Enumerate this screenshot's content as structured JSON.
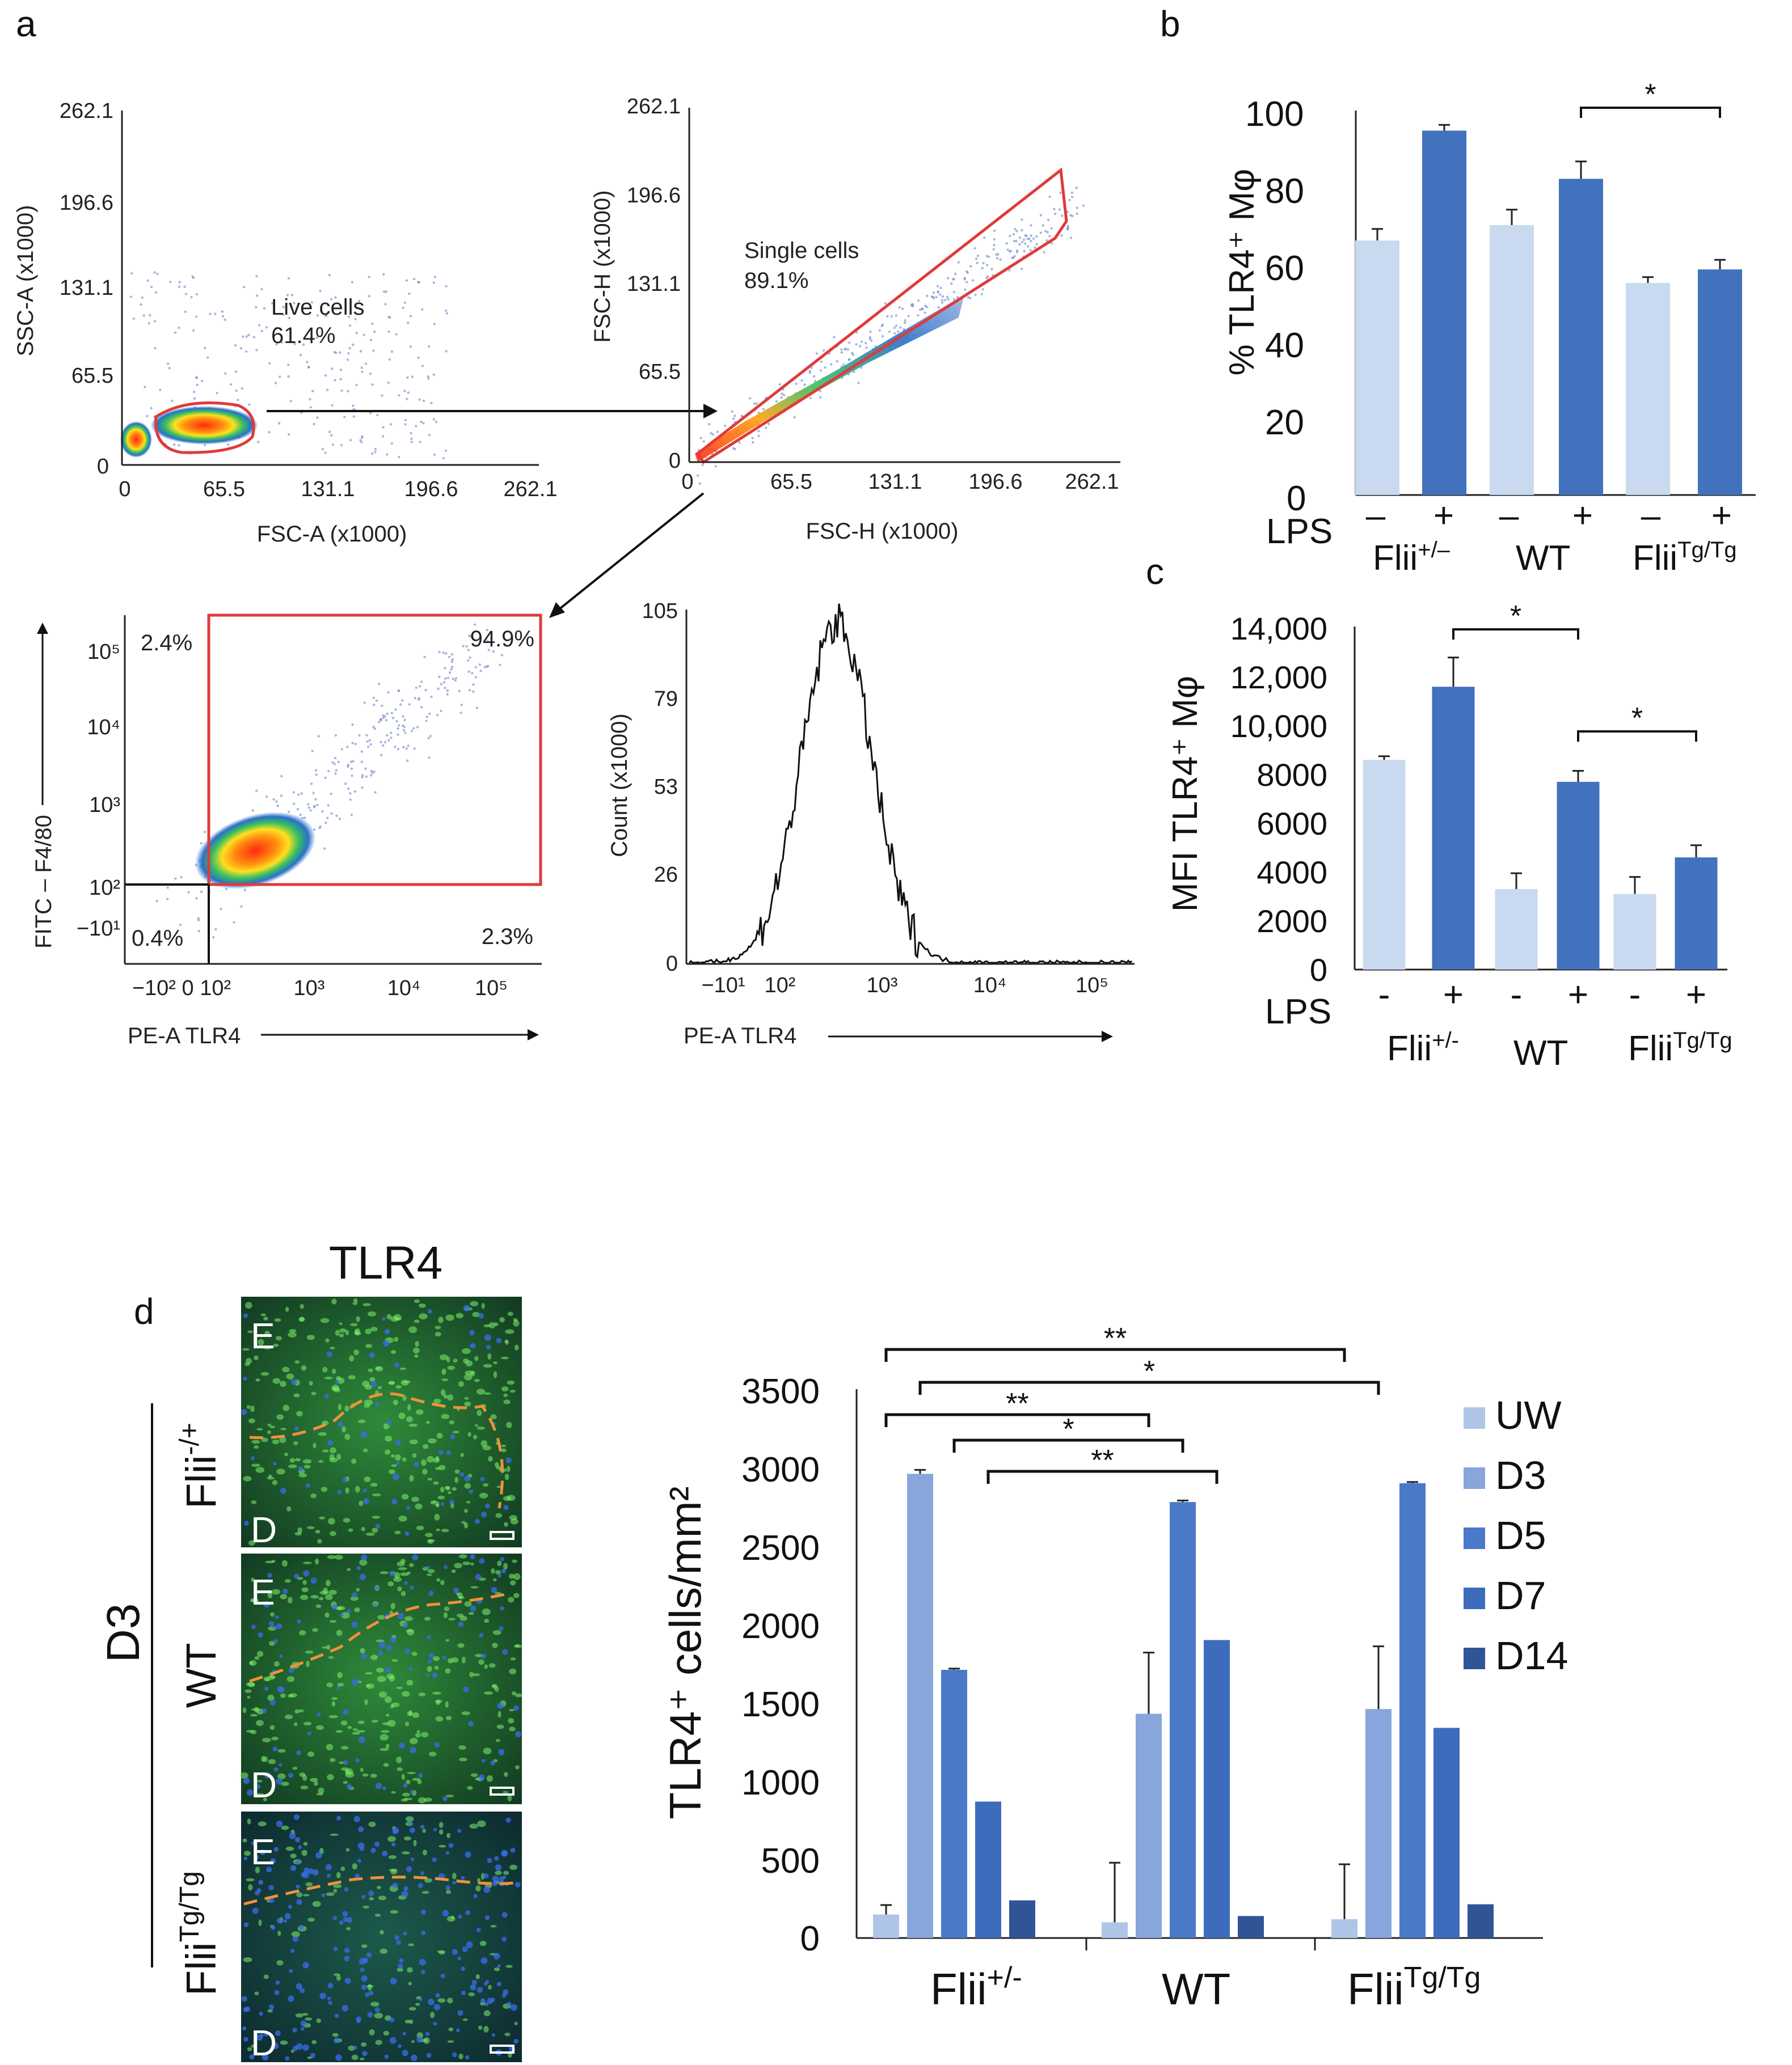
{
  "panel_labels": {
    "a": "a",
    "b": "b",
    "c": "c",
    "d": "d"
  },
  "colors": {
    "light_bar": "#c9daf0",
    "dark_bar": "#4271be",
    "uw": "#aec5e8",
    "d3": "#88a6dc",
    "d5": "#4a79c8",
    "d7": "#3d6cbd",
    "d14": "#2f5596",
    "gate": "#e03a3a",
    "dots": "#6f86c7"
  },
  "flow": {
    "scatter1": {
      "y_label": "SSC-A (x1000)",
      "x_label": "FSC-A (x1000)",
      "y_ticks": [
        "262.1",
        "196.6",
        "131.1",
        "65.5",
        "0"
      ],
      "x_ticks": [
        "0",
        "65.5",
        "131.1",
        "196.6",
        "262.1"
      ],
      "gate_name": "Live cells",
      "gate_pct": "61.4%"
    },
    "scatter2": {
      "y_label": "FSC-H (x1000)",
      "x_label": "FSC-H (x1000)",
      "y_ticks": [
        "262.1",
        "196.6",
        "131.1",
        "65.5",
        "0"
      ],
      "x_ticks": [
        "0",
        "65.5",
        "131.1",
        "196.6",
        "262.1"
      ],
      "gate_name": "Single cells",
      "gate_pct": "89.1%"
    },
    "quadrant": {
      "y_label": "FITC – F4/80",
      "x_label": "PE-A TLR4",
      "y_ticks": [
        "10⁵",
        "10⁴",
        "10³",
        "10²",
        "−10¹"
      ],
      "x_ticks": [
        "−10² 0 10²",
        "10³",
        "10⁴",
        "10⁵"
      ],
      "q_upper_left": "2.4%",
      "q_upper_right": "94.9%",
      "q_lower_left": "0.4%",
      "q_lower_right": "2.3%"
    },
    "histogram": {
      "y_label": "Count (x1000)",
      "x_label": "PE-A TLR4",
      "y_ticks": [
        "105",
        "79",
        "53",
        "26",
        "0"
      ],
      "x_ticks": [
        "−10¹",
        "10²",
        "10³",
        "10⁴",
        "10⁵"
      ]
    }
  },
  "chart_data": [
    {
      "type": "bar",
      "panel": "b",
      "ylabel": "% TLR4⁺ Mφ",
      "ylim": [
        0,
        100
      ],
      "yticks": [
        "0",
        "20",
        "40",
        "60",
        "80",
        "100"
      ],
      "lps_label": "LPS",
      "lps": [
        "–",
        "+",
        "–",
        "+",
        "–",
        "+"
      ],
      "groups": [
        "Flii⁺/⁻",
        "WT",
        "Fliiᵀᵍ/ᵀᵍ"
      ],
      "groups_display": [
        {
          "base": "Flii",
          "sup": "+/–"
        },
        {
          "base": "WT",
          "sup": ""
        },
        {
          "base": "Flii",
          "sup": "Tg/Tg"
        }
      ],
      "values": [
        66,
        94.5,
        70,
        82,
        55,
        58.5
      ],
      "errors": [
        3,
        1.5,
        4,
        4.5,
        1.5,
        2.5
      ],
      "significance": [
        {
          "from": 3,
          "to": 5,
          "label": "*"
        }
      ]
    },
    {
      "type": "bar",
      "panel": "c",
      "ylabel": "MFI TLR4⁺ Mφ",
      "ylim": [
        0,
        14000
      ],
      "yticks": [
        "0",
        "2000",
        "4000",
        "6000",
        "8000",
        "10,000",
        "12,000",
        "14,000"
      ],
      "lps_label": "LPS",
      "lps": [
        "-",
        "+",
        "-",
        "+",
        "-",
        "+"
      ],
      "groups_display": [
        {
          "base": "Flii",
          "sup": "+/-"
        },
        {
          "base": "WT",
          "sup": ""
        },
        {
          "base": "Flii",
          "sup": "Tg/Tg"
        }
      ],
      "values": [
        8600,
        11600,
        3300,
        7700,
        3100,
        4600
      ],
      "errors": [
        150,
        1200,
        650,
        450,
        700,
        500
      ],
      "significance": [
        {
          "from": 1,
          "to": 3,
          "label": "*"
        },
        {
          "from": 3,
          "to": 5,
          "label": "*"
        }
      ]
    },
    {
      "type": "bar",
      "panel": "d",
      "ylabel": "TLR4⁺ cells/mm²",
      "ylim": [
        0,
        3500
      ],
      "yticks": [
        "0",
        "500",
        "1000",
        "1500",
        "2000",
        "2500",
        "3000",
        "3500"
      ],
      "categories_display": [
        {
          "base": "Flii",
          "sup": "+/-"
        },
        {
          "base": "WT",
          "sup": ""
        },
        {
          "base": "Flii",
          "sup": "Tg/Tg"
        }
      ],
      "series": [
        {
          "name": "UW",
          "values": [
            150,
            100,
            120
          ],
          "errors": [
            60,
            380,
            350
          ]
        },
        {
          "name": "D3",
          "values": [
            2960,
            1430,
            1460
          ],
          "errors": [
            25,
            390,
            400
          ]
        },
        {
          "name": "D5",
          "values": [
            1710,
            2780,
            2900
          ],
          "errors": [
            8,
            10,
            8
          ]
        },
        {
          "name": "D7",
          "values": [
            870,
            1900,
            1340
          ],
          "errors": [
            0,
            0,
            0
          ]
        },
        {
          "name": "D14",
          "values": [
            240,
            140,
            215
          ],
          "errors": [
            0,
            0,
            0
          ]
        }
      ],
      "significance": [
        {
          "from": [
            0,
            0
          ],
          "to": [
            2,
            0
          ],
          "label": "**"
        },
        {
          "from": [
            0,
            1
          ],
          "to": [
            2,
            1
          ],
          "label": "*"
        },
        {
          "from": [
            0,
            0
          ],
          "to": [
            1,
            1
          ],
          "label": "**"
        },
        {
          "from": [
            0,
            2
          ],
          "to": [
            1,
            2
          ],
          "label": "*"
        },
        {
          "from": [
            0,
            3
          ],
          "to": [
            1,
            3
          ],
          "label": "**"
        }
      ]
    }
  ],
  "micrographs": {
    "title": "TLR4",
    "day_label": "D3",
    "rows": [
      {
        "label_base": "Flii",
        "label_sup": "-/+"
      },
      {
        "label_base": "WT",
        "label_sup": ""
      },
      {
        "label_base": "Flii",
        "label_sup": "Tg/Tg"
      }
    ],
    "epidermis_mark": "E",
    "dermis_mark": "D"
  }
}
